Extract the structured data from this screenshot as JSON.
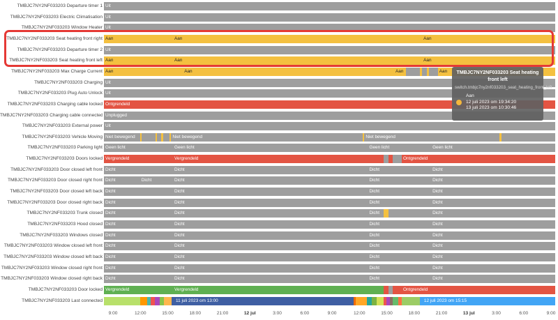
{
  "axis": {
    "ticks": [
      "9:00",
      "12:00",
      "15:00",
      "18:00",
      "21:00",
      "12 jul",
      "3:00",
      "6:00",
      "9:00",
      "12:00",
      "15:00",
      "18:00",
      "21:00",
      "13 jul",
      "3:00",
      "6:00",
      "9:00"
    ],
    "bold": [
      5,
      13
    ]
  },
  "tooltip": {
    "title": "TMBJC7NY2NF033203 Seat heating front left",
    "entity": "switch.tmbjc7ny2nf033203_seat_heating_front_left",
    "state": "Aan",
    "start": "12 juli 2023 om 19:34:20",
    "end": "13 juli 2023 om 10:30:46",
    "dot_color": "#f4b73c"
  },
  "colors": {
    "gray": "#9e9e9e",
    "yellow": "#f4c040",
    "red": "#e35443",
    "green": "#5fb052",
    "blue": "#42a5f5",
    "navy": "#3f5fa3"
  },
  "rows": [
    {
      "label": "TMBJC7NY2NF033203 Departure timer 1",
      "segs": [
        [
          0,
          100,
          "gray",
          "Uit"
        ]
      ]
    },
    {
      "label": "TMBJC7NY2NF033203 Electric Climatisation",
      "segs": [
        [
          0,
          100,
          "gray",
          "Uit"
        ]
      ]
    },
    {
      "label": "TMBJC7NY2NF033203 Window Heater",
      "segs": [
        [
          0,
          100,
          "gray",
          "Uit"
        ]
      ]
    },
    {
      "label": "TMBJC7NY2NF033203 Seat heating front right",
      "segs": [
        [
          0,
          100,
          "yellow",
          "Aan"
        ]
      ],
      "texts": [
        [
          15.3,
          "Aan"
        ],
        [
          70.5,
          "Aan"
        ]
      ]
    },
    {
      "label": "TMBJC7NY2NF033203 Departure timer 2",
      "segs": [
        [
          0,
          100,
          "gray",
          "Uit"
        ]
      ]
    },
    {
      "label": "TMBJC7NY2NF033203 Seat heating front left",
      "segs": [
        [
          0,
          100,
          "yellow",
          "Aan"
        ]
      ],
      "texts": [
        [
          15.3,
          "Aan"
        ],
        [
          70.5,
          "Aan"
        ]
      ]
    },
    {
      "label": "TMBJC7NY2NF033203 Max Charge Current",
      "segs": [
        [
          0,
          67,
          "yellow",
          "Aan"
        ],
        [
          67,
          3,
          "gray",
          ""
        ],
        [
          70,
          0.5,
          "yellow",
          ""
        ],
        [
          70.5,
          1,
          "gray",
          ""
        ],
        [
          71.5,
          0.5,
          "yellow",
          ""
        ],
        [
          72,
          2,
          "gray",
          ""
        ],
        [
          74,
          26,
          "yellow",
          "Aan"
        ]
      ],
      "texts": [
        [
          17.5,
          "Aan"
        ],
        [
          64.3,
          "Aan"
        ]
      ]
    },
    {
      "label": "TMBJC7NY2NF033203 Charging",
      "segs": [
        [
          0,
          100,
          "gray",
          "Uit"
        ]
      ]
    },
    {
      "label": "TMBJC7NY2NF033203 Plug Auto Unlock",
      "segs": [
        [
          0,
          100,
          "gray",
          "Uit"
        ]
      ]
    },
    {
      "label": "TMBJC7NY2NF033203 Charging cable locked",
      "segs": [
        [
          0,
          100,
          "red",
          "Ontgrendeld"
        ]
      ]
    },
    {
      "label": "TMBJC7NY2NF033203 Charging cable connected",
      "segs": [
        [
          0,
          100,
          "gray",
          "Unplugged"
        ]
      ]
    },
    {
      "label": "TMBJC7NY2NF033203 External power",
      "segs": [
        [
          0,
          100,
          "gray",
          "Uit"
        ]
      ]
    },
    {
      "label": "TMBJC7NY2NF033203 Vehicle Moving",
      "segs": [
        [
          0,
          8,
          "gray",
          "Niet bewegend"
        ],
        [
          8,
          0.4,
          "yellow",
          ""
        ],
        [
          8.4,
          3,
          "gray",
          ""
        ],
        [
          11.4,
          0.4,
          "yellow",
          ""
        ],
        [
          11.8,
          0.9,
          "gray",
          ""
        ],
        [
          12.7,
          0.4,
          "yellow",
          ""
        ],
        [
          13.1,
          1.4,
          "gray",
          ""
        ],
        [
          14.5,
          0.4,
          "yellow",
          ""
        ],
        [
          14.9,
          42.5,
          "gray",
          "Niet bewegend"
        ],
        [
          57.4,
          0.3,
          "yellow",
          ""
        ],
        [
          57.7,
          30,
          "gray",
          "Niet bewegend"
        ],
        [
          87.7,
          0.4,
          "yellow",
          ""
        ],
        [
          88.1,
          11.9,
          "gray",
          ""
        ]
      ]
    },
    {
      "label": "TMBJC7NY2NF033203 Parking light",
      "segs": [
        [
          0,
          100,
          "gray",
          "Geen licht"
        ]
      ],
      "texts": [
        [
          15.3,
          "Geen licht"
        ],
        [
          58.5,
          "Geen licht"
        ],
        [
          72.5,
          "Geen licht"
        ]
      ]
    },
    {
      "label": "TMBJC7NY2NF033203 Doors locked",
      "segs": [
        [
          0,
          62,
          "red",
          "Vergrendeld"
        ],
        [
          62,
          1,
          "gray",
          ""
        ],
        [
          63,
          1,
          "red",
          ""
        ],
        [
          64,
          2,
          "gray",
          ""
        ],
        [
          66,
          34,
          "red",
          "Ontgrendeld"
        ]
      ],
      "texts": [
        [
          15.3,
          "Vergrendeld"
        ]
      ]
    },
    {
      "label": "TMBJC7NY2NF033203 Door closed left front",
      "segs": [
        [
          0,
          100,
          "gray",
          "Dicht"
        ]
      ],
      "texts": [
        [
          15.3,
          "Dicht"
        ],
        [
          58.5,
          "Dicht"
        ],
        [
          72.5,
          "Dicht"
        ]
      ]
    },
    {
      "label": "TMBJC7NY2NF033203 Door closed right front",
      "segs": [
        [
          0,
          100,
          "gray",
          "Dicht"
        ]
      ],
      "texts": [
        [
          8,
          "Dicht"
        ],
        [
          15.3,
          "Dicht"
        ],
        [
          58.5,
          "Dicht"
        ],
        [
          72.5,
          "Dicht"
        ]
      ]
    },
    {
      "label": "TMBJC7NY2NF033203 Door closed left back",
      "segs": [
        [
          0,
          100,
          "gray",
          "Dicht"
        ]
      ],
      "texts": [
        [
          15.3,
          "Dicht"
        ],
        [
          58.5,
          "Dicht"
        ],
        [
          72.5,
          "Dicht"
        ]
      ]
    },
    {
      "label": "TMBJC7NY2NF033203 Door closed right back",
      "segs": [
        [
          0,
          100,
          "gray",
          "Dicht"
        ]
      ],
      "texts": [
        [
          15.3,
          "Dicht"
        ],
        [
          58.5,
          "Dicht"
        ],
        [
          72.5,
          "Dicht"
        ]
      ]
    },
    {
      "label": "TMBJC7NY2NF033203 Trunk closed",
      "segs": [
        [
          0,
          62,
          "gray",
          "Dicht"
        ],
        [
          62,
          1,
          "yellow",
          ""
        ],
        [
          63,
          37,
          "gray",
          ""
        ]
      ],
      "texts": [
        [
          15.3,
          "Dicht"
        ],
        [
          58.5,
          "Dicht"
        ],
        [
          72.5,
          "Dicht"
        ]
      ]
    },
    {
      "label": "TMBJC7NY2NF033203 Hood closed",
      "segs": [
        [
          0,
          100,
          "gray",
          "Dicht"
        ]
      ],
      "texts": [
        [
          15.3,
          "Dicht"
        ],
        [
          58.5,
          "Dicht"
        ],
        [
          72.5,
          "Dicht"
        ]
      ]
    },
    {
      "label": "TMBJC7NY2NF033203 Windows closed",
      "segs": [
        [
          0,
          100,
          "gray",
          "Dicht"
        ]
      ],
      "texts": [
        [
          15.3,
          "Dicht"
        ],
        [
          58.5,
          "Dicht"
        ],
        [
          72.5,
          "Dicht"
        ]
      ]
    },
    {
      "label": "TMBJC7NY2NF033203 Window closed left front",
      "segs": [
        [
          0,
          100,
          "gray",
          "Dicht"
        ]
      ],
      "texts": [
        [
          15.3,
          "Dicht"
        ],
        [
          58.5,
          "Dicht"
        ],
        [
          72.5,
          "Dicht"
        ]
      ]
    },
    {
      "label": "TMBJC7NY2NF033203 Window closed left back",
      "segs": [
        [
          0,
          100,
          "gray",
          "Dicht"
        ]
      ],
      "texts": [
        [
          15.3,
          "Dicht"
        ],
        [
          58.5,
          "Dicht"
        ],
        [
          72.5,
          "Dicht"
        ]
      ]
    },
    {
      "label": "TMBJC7NY2NF033203 Window closed right front",
      "segs": [
        [
          0,
          100,
          "gray",
          "Dicht"
        ]
      ],
      "texts": [
        [
          15.3,
          "Dicht"
        ],
        [
          58.5,
          "Dicht"
        ],
        [
          72.5,
          "Dicht"
        ]
      ]
    },
    {
      "label": "TMBJC7NY2NF033203 Window closed right back",
      "segs": [
        [
          0,
          100,
          "gray",
          "Dicht"
        ]
      ],
      "texts": [
        [
          15.3,
          "Dicht"
        ],
        [
          58.5,
          "Dicht"
        ],
        [
          72.5,
          "Dicht"
        ]
      ]
    },
    {
      "label": "TMBJC7NY2NF033203 Door locked",
      "segs": [
        [
          0,
          62,
          "green",
          "Vergrendeld"
        ],
        [
          62,
          1,
          "red",
          ""
        ],
        [
          63,
          1,
          "gray",
          ""
        ],
        [
          64,
          2,
          "red",
          ""
        ],
        [
          66,
          34,
          "red",
          "Ontgrendeld"
        ]
      ],
      "texts": [
        [
          15.3,
          "Vergrendeld"
        ]
      ]
    },
    {
      "label": "TMBJC7NY2NF033203 Last connected",
      "segs": [
        [
          0,
          8,
          "#b8e06a",
          ""
        ],
        [
          8,
          1.6,
          "#ff9800",
          ""
        ],
        [
          9.6,
          0.8,
          "#4db6ac",
          ""
        ],
        [
          10.4,
          0.9,
          "#ef5350",
          ""
        ],
        [
          11.3,
          1,
          "#ab47bc",
          ""
        ],
        [
          12.3,
          1,
          "#8bc34a",
          ""
        ],
        [
          13.3,
          1.7,
          "#ffb74d",
          ""
        ],
        [
          15,
          40.3,
          "navy",
          "11 juli 2023 om 13:00"
        ],
        [
          55.3,
          0.5,
          "#ef6c00",
          ""
        ],
        [
          55.8,
          2.5,
          "#ffa726",
          ""
        ],
        [
          58.3,
          1,
          "#26a69a",
          ""
        ],
        [
          59.3,
          1.2,
          "#7cb342",
          ""
        ],
        [
          60.5,
          1.5,
          "#d4e157",
          ""
        ],
        [
          62,
          0.6,
          "#ef5350",
          ""
        ],
        [
          62.6,
          0.7,
          "#ab47bc",
          ""
        ],
        [
          63.3,
          0.7,
          "#8d6e63",
          ""
        ],
        [
          64,
          1.2,
          "#66bb6a",
          ""
        ],
        [
          65.2,
          0.8,
          "#ff7043",
          ""
        ],
        [
          66,
          4,
          "#9ccc65",
          ""
        ],
        [
          70,
          30,
          "blue",
          "12 juli 2023 om 15:15"
        ]
      ],
      "textsRight": [
        [
          98,
          "12 juli 2023 om 15:15"
        ]
      ]
    }
  ]
}
